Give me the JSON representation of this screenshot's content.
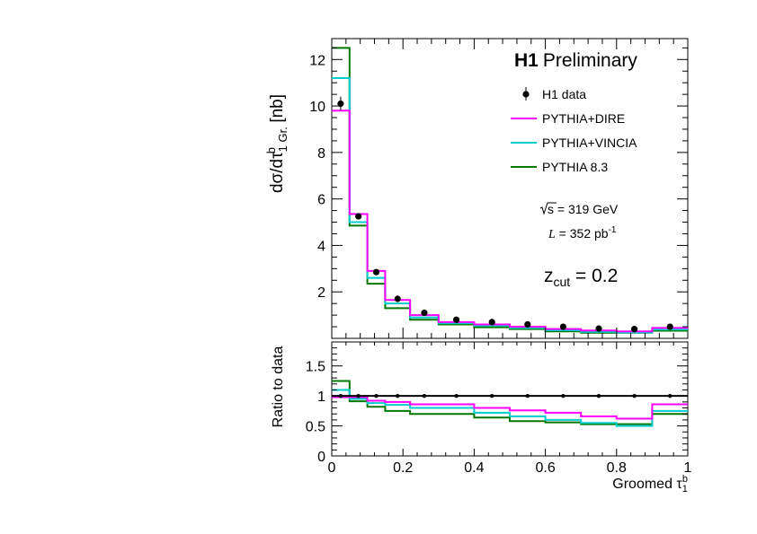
{
  "chart_data": [
    {
      "type": "histogram",
      "panel": "main",
      "title": "H1 Preliminary",
      "title_bold": "H1",
      "title_rest": "Preliminary",
      "ylabel": "dσ/dτ1 Gr.b [nb]",
      "ylabel_parts": {
        "main": "dσ/dτ",
        "sub": "1 Gr.",
        "sup": "b",
        "unit": " [nb]"
      },
      "xlim": [
        0,
        1
      ],
      "ylim": [
        0,
        12.9
      ],
      "yticks": [
        "2",
        "4",
        "6",
        "8",
        "10",
        "12"
      ],
      "bin_edges": [
        0,
        0.05,
        0.1,
        0.15,
        0.22,
        0.3,
        0.4,
        0.5,
        0.6,
        0.7,
        0.8,
        0.9,
        1.0
      ],
      "data": {
        "name": "H1 data",
        "x": [
          0.025,
          0.075,
          0.125,
          0.185,
          0.26,
          0.35,
          0.45,
          0.55,
          0.65,
          0.75,
          0.85,
          0.95
        ],
        "y": [
          10.1,
          5.25,
          2.85,
          1.7,
          1.1,
          0.8,
          0.7,
          0.6,
          0.5,
          0.42,
          0.4,
          0.5
        ],
        "err": [
          0.3,
          0.12,
          0.08,
          0.05,
          0.03,
          0.02,
          0.02,
          0.02,
          0.02,
          0.02,
          0.02,
          0.02
        ]
      },
      "series": [
        {
          "name": "PYTHIA+DIRE",
          "color": "#ff00ff",
          "values": [
            9.8,
            5.35,
            2.9,
            1.65,
            1.0,
            0.7,
            0.6,
            0.5,
            0.4,
            0.34,
            0.3,
            0.45
          ]
        },
        {
          "name": "PYTHIA+VINCIA",
          "color": "#00cccc",
          "values": [
            11.2,
            5.0,
            2.6,
            1.5,
            0.9,
            0.65,
            0.55,
            0.45,
            0.35,
            0.28,
            0.25,
            0.38
          ]
        },
        {
          "name": "PYTHIA 8.3",
          "color": "#007700",
          "values": [
            12.5,
            4.85,
            2.35,
            1.3,
            0.8,
            0.6,
            0.48,
            0.4,
            0.3,
            0.24,
            0.24,
            0.33
          ]
        }
      ],
      "annotations": {
        "energy": "√s = 319 GeV",
        "energy_parts": {
          "sqrt": "s",
          "rest": " = 319 GeV"
        },
        "lumi": "L = 352 pb-1",
        "lumi_parts": {
          "L": "L",
          "mid": " = 352 pb",
          "sup": "-1"
        },
        "zcut": "zcut = 0.2",
        "zcut_parts": {
          "z": "z",
          "sub": "cut",
          "rest": " = 0.2"
        }
      }
    },
    {
      "type": "histogram",
      "panel": "ratio",
      "ylabel": "Ratio to data",
      "xlabel": "Groomed τ1b",
      "xlabel_parts": {
        "main": "Groomed τ",
        "sub": "1",
        "sup": "b"
      },
      "xlim": [
        0,
        1
      ],
      "ylim": [
        0,
        1.9
      ],
      "yticks": [
        "0",
        "0.5",
        "1",
        "1.5"
      ],
      "xticks": [
        "0",
        "0.2",
        "0.4",
        "0.6",
        "0.8",
        "1"
      ],
      "bin_edges": [
        0,
        0.05,
        0.1,
        0.15,
        0.22,
        0.3,
        0.4,
        0.5,
        0.6,
        0.7,
        0.8,
        0.9,
        1.0
      ],
      "reference": 1.0,
      "data_points": {
        "x": [
          0.025,
          0.075,
          0.125,
          0.185,
          0.26,
          0.35,
          0.45,
          0.55,
          0.65,
          0.75,
          0.85,
          0.95
        ],
        "y": [
          1,
          1,
          1,
          1,
          1,
          1,
          1,
          1,
          1,
          1,
          1,
          1
        ]
      },
      "series": [
        {
          "name": "PYTHIA+DIRE",
          "color": "#ff00ff",
          "values": [
            0.98,
            0.98,
            0.92,
            0.9,
            0.86,
            0.86,
            0.8,
            0.76,
            0.72,
            0.66,
            0.62,
            0.86
          ]
        },
        {
          "name": "PYTHIA+VINCIA",
          "color": "#00cccc",
          "values": [
            1.1,
            0.95,
            0.88,
            0.85,
            0.8,
            0.8,
            0.72,
            0.66,
            0.6,
            0.55,
            0.5,
            0.75
          ]
        },
        {
          "name": "PYTHIA 8.3",
          "color": "#007700",
          "values": [
            1.25,
            0.91,
            0.82,
            0.75,
            0.7,
            0.7,
            0.64,
            0.58,
            0.56,
            0.53,
            0.53,
            0.7
          ]
        }
      ]
    }
  ]
}
